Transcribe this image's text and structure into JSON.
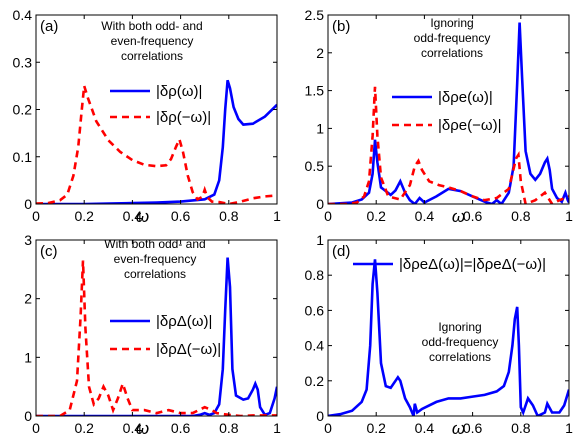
{
  "chart_data": [
    {
      "panel": "(a)",
      "type": "line",
      "xlabel": "ω",
      "xlim": [
        0,
        1
      ],
      "ylim": [
        0,
        0.4
      ],
      "x_ticks": [
        "0",
        "0.2",
        "0.4",
        "0.6",
        "0.8",
        "1"
      ],
      "y_ticks": [
        "0",
        "0.1",
        "0.2",
        "0.3",
        "0.4"
      ],
      "note": [
        "With both odd- and",
        "even-frequency",
        "correlations"
      ],
      "legend": "center-right",
      "series": [
        {
          "name": "|δρ(ω)|",
          "color": "#0000ff",
          "style": "solid",
          "points": [
            [
              0,
              0.0
            ],
            [
              0.1,
              0.0
            ],
            [
              0.2,
              0.0
            ],
            [
              0.3,
              0.001
            ],
            [
              0.4,
              0.002
            ],
            [
              0.5,
              0.003
            ],
            [
              0.6,
              0.005
            ],
            [
              0.7,
              0.01
            ],
            [
              0.74,
              0.02
            ],
            [
              0.76,
              0.05
            ],
            [
              0.775,
              0.12
            ],
            [
              0.785,
              0.2
            ],
            [
              0.795,
              0.262
            ],
            [
              0.805,
              0.245
            ],
            [
              0.82,
              0.205
            ],
            [
              0.84,
              0.18
            ],
            [
              0.86,
              0.168
            ],
            [
              0.9,
              0.17
            ],
            [
              0.95,
              0.185
            ],
            [
              1.0,
              0.21
            ]
          ]
        },
        {
          "name": "|δρ(−ω)|",
          "color": "#ff0000",
          "style": "dashed",
          "points": [
            [
              0,
              0.001
            ],
            [
              0.05,
              0.002
            ],
            [
              0.1,
              0.008
            ],
            [
              0.13,
              0.02
            ],
            [
              0.155,
              0.06
            ],
            [
              0.175,
              0.12
            ],
            [
              0.19,
              0.2
            ],
            [
              0.2,
              0.25
            ],
            [
              0.215,
              0.225
            ],
            [
              0.25,
              0.175
            ],
            [
              0.3,
              0.135
            ],
            [
              0.35,
              0.11
            ],
            [
              0.4,
              0.093
            ],
            [
              0.45,
              0.083
            ],
            [
              0.5,
              0.08
            ],
            [
              0.54,
              0.082
            ],
            [
              0.56,
              0.095
            ],
            [
              0.58,
              0.12
            ],
            [
              0.595,
              0.137
            ],
            [
              0.61,
              0.11
            ],
            [
              0.63,
              0.06
            ],
            [
              0.65,
              0.025
            ],
            [
              0.67,
              0.01
            ],
            [
              0.69,
              0.015
            ],
            [
              0.7,
              0.03
            ],
            [
              0.71,
              0.015
            ],
            [
              0.73,
              0.005
            ],
            [
              0.76,
              0.004
            ],
            [
              0.8,
              0.0
            ],
            [
              0.85,
              0.005
            ],
            [
              0.9,
              0.012
            ],
            [
              0.95,
              0.016
            ],
            [
              1.0,
              0.018
            ]
          ]
        }
      ]
    },
    {
      "panel": "(b)",
      "type": "line",
      "xlabel": "ω",
      "xlim": [
        0,
        1
      ],
      "ylim": [
        0,
        2.5
      ],
      "x_ticks": [
        "0",
        "0.2",
        "0.4",
        "0.6",
        "0.8",
        "1"
      ],
      "y_ticks": [
        "0",
        "0.5",
        "1",
        "1.5",
        "2",
        "2.5"
      ],
      "note": [
        "Ignoring",
        "odd-frequency",
        "correlations"
      ],
      "legend": "center-right",
      "series": [
        {
          "name": "|δρe(ω)|",
          "color": "#0000ff",
          "style": "solid",
          "points": [
            [
              0,
              0.0
            ],
            [
              0.1,
              0.02
            ],
            [
              0.14,
              0.06
            ],
            [
              0.17,
              0.15
            ],
            [
              0.185,
              0.4
            ],
            [
              0.195,
              0.85
            ],
            [
              0.205,
              0.55
            ],
            [
              0.22,
              0.22
            ],
            [
              0.26,
              0.12
            ],
            [
              0.28,
              0.18
            ],
            [
              0.3,
              0.3
            ],
            [
              0.32,
              0.15
            ],
            [
              0.34,
              0.05
            ],
            [
              0.36,
              0.0
            ],
            [
              0.38,
              0.08
            ],
            [
              0.4,
              0.02
            ],
            [
              0.45,
              0.1
            ],
            [
              0.5,
              0.2
            ],
            [
              0.55,
              0.17
            ],
            [
              0.6,
              0.1
            ],
            [
              0.65,
              0.03
            ],
            [
              0.68,
              0.0
            ],
            [
              0.7,
              0.05
            ],
            [
              0.72,
              0.0
            ],
            [
              0.75,
              0.15
            ],
            [
              0.77,
              0.5
            ],
            [
              0.785,
              1.6
            ],
            [
              0.795,
              2.4
            ],
            [
              0.805,
              1.7
            ],
            [
              0.82,
              0.7
            ],
            [
              0.84,
              0.4
            ],
            [
              0.86,
              0.32
            ],
            [
              0.88,
              0.4
            ],
            [
              0.9,
              0.55
            ],
            [
              0.91,
              0.6
            ],
            [
              0.92,
              0.45
            ],
            [
              0.93,
              0.2
            ],
            [
              0.95,
              0.08
            ],
            [
              0.97,
              0.03
            ],
            [
              0.985,
              0.15
            ],
            [
              0.995,
              0.05
            ],
            [
              1.0,
              0.02
            ]
          ]
        },
        {
          "name": "|δρe(−ω)|",
          "color": "#ff0000",
          "style": "dashed",
          "points": [
            [
              0,
              0.0
            ],
            [
              0.08,
              0.0
            ],
            [
              0.12,
              0.02
            ],
            [
              0.15,
              0.1
            ],
            [
              0.17,
              0.3
            ],
            [
              0.185,
              0.9
            ],
            [
              0.195,
              1.55
            ],
            [
              0.205,
              0.9
            ],
            [
              0.22,
              0.35
            ],
            [
              0.25,
              0.1
            ],
            [
              0.3,
              0.06
            ],
            [
              0.34,
              0.25
            ],
            [
              0.36,
              0.5
            ],
            [
              0.375,
              0.57
            ],
            [
              0.39,
              0.45
            ],
            [
              0.42,
              0.3
            ],
            [
              0.46,
              0.25
            ],
            [
              0.5,
              0.22
            ],
            [
              0.55,
              0.17
            ],
            [
              0.6,
              0.1
            ],
            [
              0.65,
              0.05
            ],
            [
              0.7,
              0.08
            ],
            [
              0.75,
              0.2
            ],
            [
              0.78,
              0.6
            ],
            [
              0.79,
              0.65
            ],
            [
              0.8,
              0.3
            ],
            [
              0.82,
              0.0
            ],
            [
              0.86,
              0.05
            ],
            [
              0.9,
              0.15
            ],
            [
              0.93,
              0.0
            ],
            [
              0.96,
              0.05
            ],
            [
              1.0,
              0.1
            ]
          ]
        }
      ]
    },
    {
      "panel": "(c)",
      "type": "line",
      "xlabel": "ω",
      "xlim": [
        0,
        1
      ],
      "ylim": [
        0,
        3
      ],
      "x_ticks": [
        "0",
        "0.2",
        "0.4",
        "0.6",
        "0.8",
        "1"
      ],
      "y_ticks": [
        "0",
        "1",
        "2",
        "3"
      ],
      "note": [
        "With both odd- and",
        "even-frequency",
        "correlations"
      ],
      "legend": "center-right",
      "series": [
        {
          "name": "|δρΔ(ω)|",
          "color": "#0000ff",
          "style": "solid",
          "points": [
            [
              0,
              0.0
            ],
            [
              0.5,
              0.0
            ],
            [
              0.6,
              0.0
            ],
            [
              0.65,
              0.0
            ],
            [
              0.68,
              0.02
            ],
            [
              0.7,
              0.05
            ],
            [
              0.72,
              0.02
            ],
            [
              0.74,
              0.05
            ],
            [
              0.76,
              0.2
            ],
            [
              0.775,
              0.8
            ],
            [
              0.785,
              1.8
            ],
            [
              0.795,
              2.7
            ],
            [
              0.805,
              2.2
            ],
            [
              0.815,
              0.8
            ],
            [
              0.83,
              0.35
            ],
            [
              0.86,
              0.28
            ],
            [
              0.88,
              0.3
            ],
            [
              0.9,
              0.45
            ],
            [
              0.91,
              0.55
            ],
            [
              0.92,
              0.45
            ],
            [
              0.93,
              0.15
            ],
            [
              0.95,
              0.02
            ],
            [
              0.97,
              0.05
            ],
            [
              0.99,
              0.3
            ],
            [
              1.0,
              0.5
            ]
          ]
        },
        {
          "name": "|δρΔ(−ω)|",
          "color": "#ff0000",
          "style": "dashed",
          "points": [
            [
              0,
              0.0
            ],
            [
              0.1,
              0.0
            ],
            [
              0.14,
              0.1
            ],
            [
              0.17,
              0.6
            ],
            [
              0.185,
              1.7
            ],
            [
              0.195,
              2.65
            ],
            [
              0.205,
              1.5
            ],
            [
              0.22,
              0.5
            ],
            [
              0.24,
              0.2
            ],
            [
              0.26,
              0.3
            ],
            [
              0.28,
              0.5
            ],
            [
              0.3,
              0.35
            ],
            [
              0.32,
              0.1
            ],
            [
              0.34,
              0.3
            ],
            [
              0.36,
              0.55
            ],
            [
              0.38,
              0.3
            ],
            [
              0.4,
              0.1
            ],
            [
              0.45,
              0.1
            ],
            [
              0.5,
              0.05
            ],
            [
              0.55,
              0.1
            ],
            [
              0.6,
              0.05
            ],
            [
              0.65,
              0.05
            ],
            [
              0.7,
              0.15
            ],
            [
              0.73,
              0.1
            ],
            [
              0.75,
              0.05
            ],
            [
              0.8,
              0.02
            ],
            [
              0.85,
              0.0
            ],
            [
              0.9,
              0.01
            ],
            [
              1.0,
              0.01
            ]
          ]
        }
      ]
    },
    {
      "panel": "(d)",
      "type": "line",
      "xlabel": "ω",
      "xlim": [
        0,
        1
      ],
      "ylim": [
        0,
        1
      ],
      "x_ticks": [
        "0",
        "0.2",
        "0.4",
        "0.6",
        "0.8",
        "1"
      ],
      "y_ticks": [
        "0",
        "0.2",
        "0.4",
        "0.6",
        "0.8",
        "1"
      ],
      "note": [
        "Ignoring",
        "odd-frequency",
        "correlations"
      ],
      "legend": "top-right",
      "series": [
        {
          "name": "|δρeΔ(ω)|=|δρeΔ(−ω)|",
          "color": "#0000ff",
          "style": "solid",
          "points": [
            [
              0,
              0.0
            ],
            [
              0.05,
              0.01
            ],
            [
              0.1,
              0.03
            ],
            [
              0.14,
              0.08
            ],
            [
              0.16,
              0.15
            ],
            [
              0.175,
              0.4
            ],
            [
              0.185,
              0.75
            ],
            [
              0.195,
              0.89
            ],
            [
              0.205,
              0.7
            ],
            [
              0.22,
              0.3
            ],
            [
              0.24,
              0.17
            ],
            [
              0.26,
              0.16
            ],
            [
              0.28,
              0.2
            ],
            [
              0.29,
              0.22
            ],
            [
              0.3,
              0.2
            ],
            [
              0.32,
              0.1
            ],
            [
              0.34,
              0.05
            ],
            [
              0.355,
              0.0
            ],
            [
              0.36,
              0.07
            ],
            [
              0.37,
              0.02
            ],
            [
              0.39,
              0.04
            ],
            [
              0.42,
              0.06
            ],
            [
              0.45,
              0.08
            ],
            [
              0.5,
              0.1
            ],
            [
              0.55,
              0.1
            ],
            [
              0.6,
              0.11
            ],
            [
              0.65,
              0.12
            ],
            [
              0.7,
              0.14
            ],
            [
              0.73,
              0.17
            ],
            [
              0.75,
              0.25
            ],
            [
              0.765,
              0.4
            ],
            [
              0.775,
              0.55
            ],
            [
              0.785,
              0.62
            ],
            [
              0.792,
              0.4
            ],
            [
              0.8,
              0.05
            ],
            [
              0.81,
              0.02
            ],
            [
              0.83,
              0.1
            ],
            [
              0.85,
              0.06
            ],
            [
              0.87,
              0.0
            ],
            [
              0.9,
              0.02
            ],
            [
              0.91,
              0.07
            ],
            [
              0.93,
              0.02
            ],
            [
              0.96,
              0.02
            ],
            [
              0.98,
              0.06
            ],
            [
              1.0,
              0.15
            ]
          ]
        }
      ]
    }
  ]
}
